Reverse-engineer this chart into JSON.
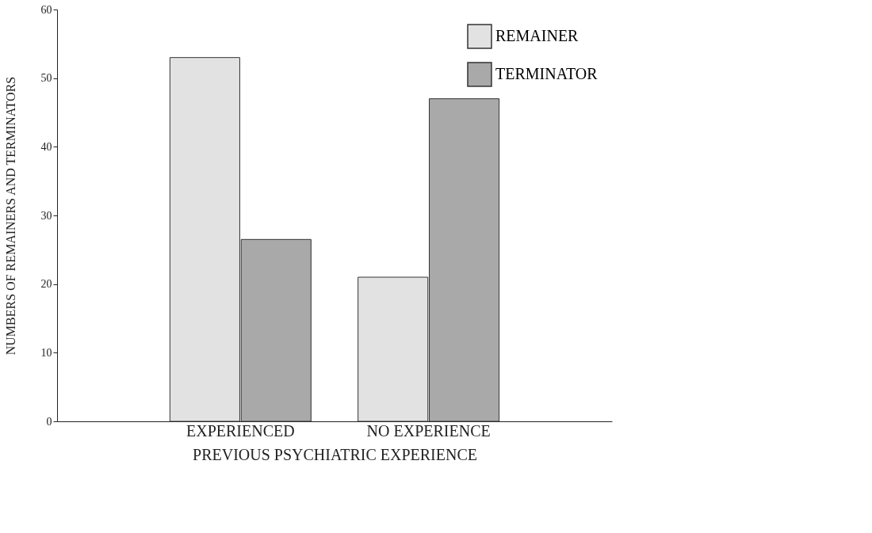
{
  "chart_data": {
    "type": "bar",
    "xlabel": "PREVIOUS PSYCHIATRIC EXPERIENCE",
    "ylabel": "NUMBERS OF REMAINERS AND TERMINATORS",
    "categories": [
      "EXPERIENCED",
      "NO EXPERIENCE"
    ],
    "series": [
      {
        "name": "REMAINER",
        "color": "#e2e2e2",
        "values": [
          53,
          21
        ]
      },
      {
        "name": "TERMINATOR",
        "color": "#a9a9a9",
        "values": [
          26.5,
          47
        ]
      }
    ],
    "ylim": [
      0,
      60
    ],
    "yticks": [
      0,
      10,
      20,
      30,
      40,
      50,
      60
    ],
    "grid": false,
    "legend": "top right"
  }
}
